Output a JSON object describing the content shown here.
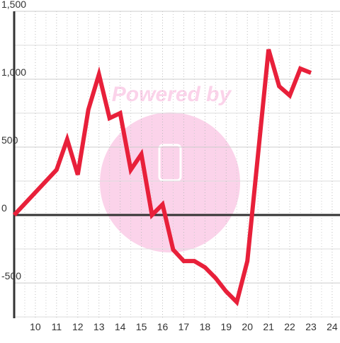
{
  "chart_data": {
    "type": "line",
    "watermark": "Powered by",
    "x": [
      9,
      11,
      11.5,
      12,
      12.5,
      13,
      13.5,
      14,
      14.5,
      15,
      15.5,
      16,
      16.5,
      17,
      17.5,
      18,
      18.5,
      19,
      19.5,
      20,
      21,
      21.5,
      22,
      22.5,
      23
    ],
    "series": [
      {
        "color": "#e8203a",
        "values": [
          0,
          333,
          557,
          297,
          776,
          1036,
          713,
          750,
          333,
          448,
          0,
          78,
          -255,
          -339,
          -339,
          -385,
          -464,
          -563,
          -641,
          -339,
          1219,
          948,
          880,
          1078,
          1047
        ]
      }
    ],
    "xlim": [
      9,
      24.37
    ],
    "xticks": [
      10,
      11,
      12,
      13,
      14,
      15,
      16,
      17,
      18,
      19,
      20,
      21,
      22,
      23,
      24
    ],
    "ylim": [
      -760,
      1500
    ],
    "yticks": [
      {
        "value": -500,
        "label": "-500"
      },
      0,
      500,
      {
        "value": 1000,
        "label": "1,000"
      },
      {
        "value": 1500,
        "label": "1,500"
      }
    ],
    "grid": true
  }
}
